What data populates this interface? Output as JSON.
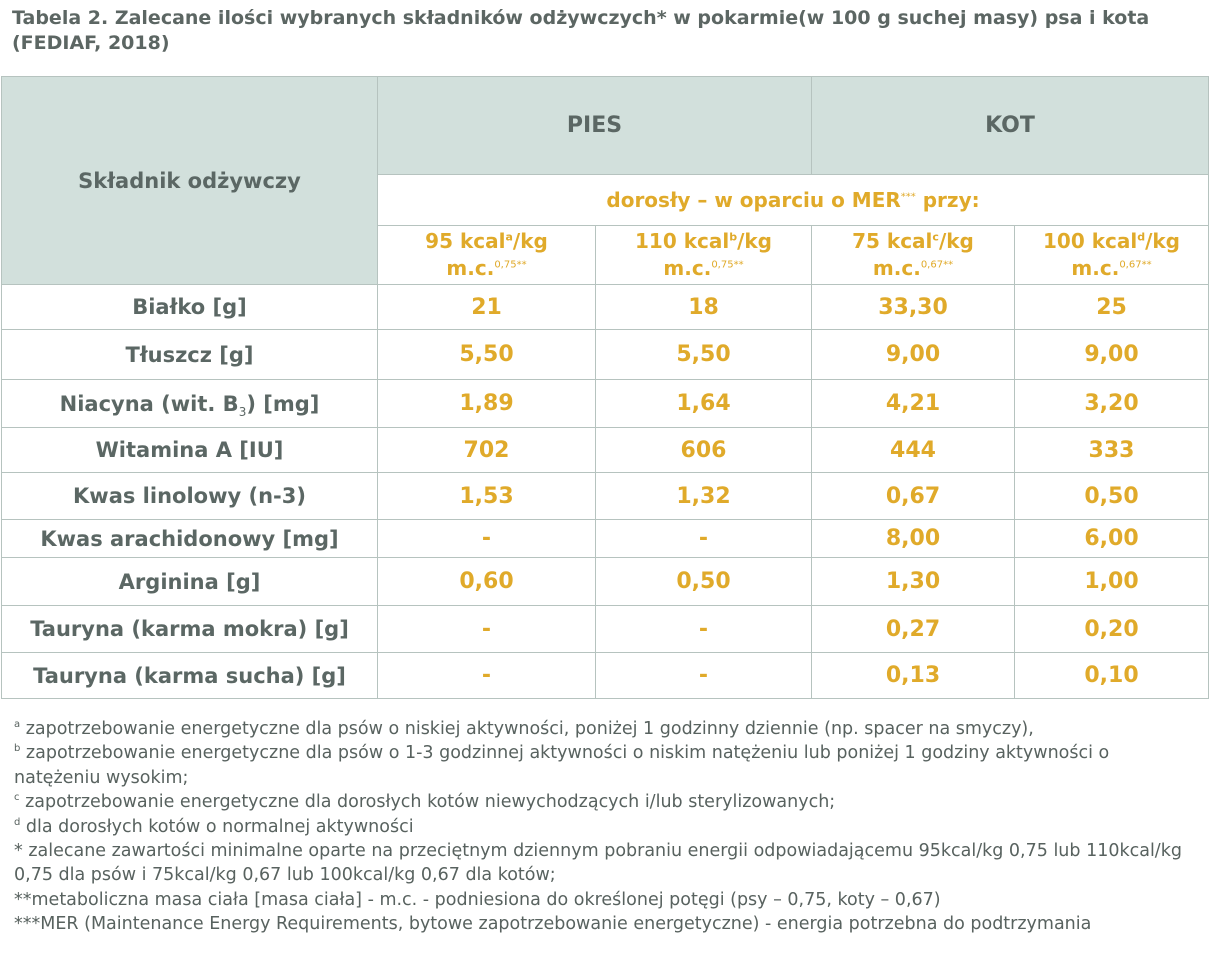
{
  "title": "Tabela 2. Zalecane ilości wybranych składników odżywczych* w pokarmie(w 100 g suchej masy) psa i kota (FEDIAF, 2018)",
  "header": {
    "corner": "Składnik odżywczy",
    "group_dog": "PIES",
    "group_cat": "KOT",
    "subheader_main": "dorosły – w oparciu o MER",
    "subheader_mark": "***",
    "subheader_end": " przy:",
    "columns": [
      {
        "l1": "95 kcal",
        "l1sup": "a",
        "l1end": "/kg",
        "l2": "m.c.",
        "l2sup": "0,75**"
      },
      {
        "l1": "110 kcal",
        "l1sup": "b",
        "l1end": "/kg",
        "l2": "m.c.",
        "l2sup": "0,75**"
      },
      {
        "l1": "75 kcal",
        "l1sup": "c",
        "l1end": "/kg",
        "l2": "m.c.",
        "l2sup": "0,67**"
      },
      {
        "l1": "100 kcal",
        "l1sup": "d",
        "l1end": "/kg",
        "l2": "m.c.",
        "l2sup": "0,67**"
      }
    ]
  },
  "rows": [
    {
      "label": "Białko [g]",
      "values": [
        "21",
        "18",
        "33,30",
        "25"
      ]
    },
    {
      "label": "Tłuszcz [g]",
      "values": [
        "5,50",
        "5,50",
        "9,00",
        "9,00"
      ]
    },
    {
      "label_pre": "Niacyna (wit. B",
      "label_sub": "3",
      "label_post": ") [mg]",
      "values": [
        "1,89",
        "1,64",
        "4,21",
        "3,20"
      ]
    },
    {
      "label": "Witamina A [IU]",
      "values": [
        "702",
        "606",
        "444",
        "333"
      ]
    },
    {
      "label": "Kwas linolowy (n-3)",
      "values": [
        "1,53",
        "1,32",
        "0,67",
        "0,50"
      ]
    },
    {
      "label": "Kwas arachidonowy [mg]",
      "values": [
        "-",
        "-",
        "8,00",
        "6,00"
      ]
    },
    {
      "label": "Arginina [g]",
      "values": [
        "0,60",
        "0,50",
        "1,30",
        "1,00"
      ]
    },
    {
      "label": "Tauryna (karma mokra) [g]",
      "values": [
        "-",
        "-",
        "0,27",
        "0,20"
      ]
    },
    {
      "label": "Tauryna (karma sucha) [g]",
      "values": [
        "-",
        "-",
        "0,13",
        "0,10"
      ]
    }
  ],
  "footnotes": [
    {
      "mark": "a",
      "text": " zapotrzebowanie energetyczne dla psów o niskiej aktywności, poniżej 1 godzinny dziennie (np. spacer na smyczy),"
    },
    {
      "mark": "b",
      "text": "  zapotrzebowanie energetyczne dla psów o 1-3 godzinnej aktywności o niskim natężeniu lub poniżej 1 godziny aktywności o natężeniu wysokim;"
    },
    {
      "mark": "c",
      "text": "  zapotrzebowanie energetyczne dla dorosłych kotów niewychodzących i/lub sterylizowanych;"
    },
    {
      "mark": "d",
      "text": " dla dorosłych kotów o normalnej aktywności"
    },
    {
      "mark": "",
      "text": "* zalecane zawartości minimalne oparte na przeciętnym dziennym pobraniu energii odpowiadającemu 95kcal/kg 0,75 lub 110kcal/kg 0,75 dla psów i 75kcal/kg 0,67 lub 100kcal/kg 0,67 dla kotów;"
    },
    {
      "mark": "",
      "text": "**metaboliczna masa ciała [masa ciała] - m.c. -  podniesiona do określonej potęgi (psy – 0,75, koty – 0,67)"
    },
    {
      "mark": "",
      "text": "***MER (Maintenance Energy Requirements, bytowe zapotrzebowanie energetyczne) - energia potrzebna do podtrzymania"
    }
  ]
}
